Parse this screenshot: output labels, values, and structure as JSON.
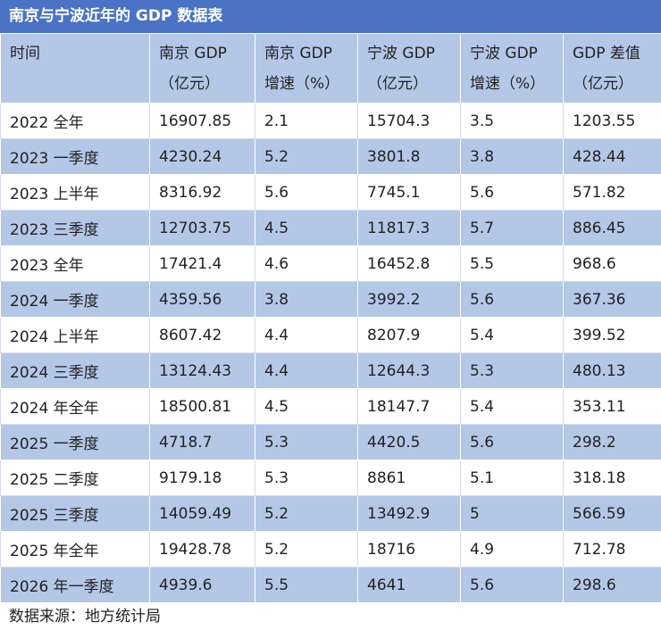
{
  "title": "南京与宁波近年的 GDP 数据表",
  "table": {
    "header": [
      [
        "时间"
      ],
      [
        "南京 GDP",
        "（亿元）"
      ],
      [
        "南京 GDP",
        "增速（%）"
      ],
      [
        "宁波 GDP",
        "（亿元）"
      ],
      [
        "宁波 GDP",
        "增速（%）"
      ],
      [
        "GDP 差值",
        "（亿元）"
      ]
    ],
    "rows": [
      [
        "2022 全年",
        "16907.85",
        "2.1",
        "15704.3",
        "3.5",
        "1203.55"
      ],
      [
        "2023 一季度",
        "4230.24",
        "5.2",
        "3801.8",
        "3.8",
        "428.44"
      ],
      [
        "2023 上半年",
        "8316.92",
        "5.6",
        "7745.1",
        "5.6",
        "571.82"
      ],
      [
        "2023 三季度",
        "12703.75",
        "4.5",
        "11817.3",
        "5.7",
        "886.45"
      ],
      [
        "2023 全年",
        "17421.4",
        "4.6",
        "16452.8",
        "5.5",
        "968.6"
      ],
      [
        "2024 一季度",
        "4359.56",
        "3.8",
        "3992.2",
        "5.6",
        "367.36"
      ],
      [
        "2024 上半年",
        "8607.42",
        "4.4",
        "8207.9",
        "5.4",
        "399.52"
      ],
      [
        "2024 三季度",
        "13124.43",
        "4.4",
        "12644.3",
        "5.3",
        "480.13"
      ],
      [
        "2024 年全年",
        "18500.81",
        "4.5",
        "18147.7",
        "5.4",
        "353.11"
      ],
      [
        "2025 一季度",
        "4718.7",
        "5.3",
        "4420.5",
        "5.6",
        "298.2"
      ],
      [
        "2025 二季度",
        "9179.18",
        "5.3",
        "8861",
        "5.1",
        "318.18"
      ],
      [
        "2025 三季度",
        "14059.49",
        "5.2",
        "13492.9",
        "5",
        "566.59"
      ],
      [
        "2025 年全年",
        "19428.78",
        "5.2",
        "18716",
        "4.9",
        "712.78"
      ],
      [
        "2026 年一季度",
        "4939.6",
        "5.5",
        "4641",
        "5.6",
        "298.6"
      ]
    ]
  },
  "footer": "数据来源：地方统计局"
}
